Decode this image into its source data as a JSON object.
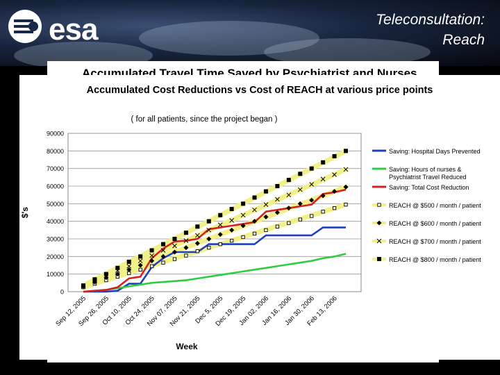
{
  "slide": {
    "title_line1": "Teleconsultation:",
    "title_line2": "Reach",
    "logo_text": "esa",
    "behind_title": "Accumulated Travel Time Saved by Psychiatrist and Nurses"
  },
  "colors": {
    "hospital": "#1f3fbf",
    "travel": "#2ecc40",
    "total": "#d62020",
    "reach_band": "#f2f08a"
  },
  "chart_data": {
    "type": "line",
    "title": "Accumulated Cost Reductions vs Cost of REACH at various price points",
    "subtitle": "( for all patients, since the project began )",
    "xlabel": "Week",
    "ylabel": "$'s",
    "ylim": [
      0,
      90000
    ],
    "yticks": [
      "0",
      "10000",
      "20000",
      "30000",
      "40000",
      "50000",
      "60000",
      "70000",
      "80000",
      "90000"
    ],
    "xticklabels": [
      "Sep 12, 2005",
      "Sep 26, 2005",
      "Oct 10, 2005",
      "Oct 24, 2005",
      "Nov 07, 2005",
      "Nov 21, 2005",
      "Dec 5, 2005",
      "Dec 19, 2005",
      "Jan 02, 2006",
      "Jan 16, 2006",
      "Jan 30, 2006",
      "Feb 13, 2006"
    ],
    "grid": "horizontal",
    "legend_position": "right",
    "x": [
      0,
      1,
      2,
      3,
      4,
      5,
      6,
      7,
      8,
      9,
      10,
      11,
      12,
      13,
      14,
      15,
      16,
      17,
      18,
      19,
      20,
      21,
      22,
      23
    ],
    "series": [
      {
        "name": "Saving:  Hospital Days Prevented",
        "style": "line",
        "color": "#1f3fbf",
        "values": [
          0,
          0,
          0,
          500,
          4500,
          4500,
          14000,
          19000,
          22500,
          22500,
          22500,
          27000,
          27000,
          27000,
          27000,
          27000,
          32000,
          32000,
          32000,
          32000,
          32000,
          36500,
          36500,
          36500
        ]
      },
      {
        "name": "Saving:  Hours of  nurses & Psychiatrist Travel Reduced",
        "style": "line",
        "color": "#2ecc40",
        "values": [
          0,
          500,
          1000,
          2000,
          3000,
          4000,
          5000,
          5500,
          6000,
          6500,
          7500,
          8500,
          9500,
          10500,
          11500,
          12500,
          13500,
          14500,
          15500,
          16500,
          17500,
          19000,
          20000,
          21500
        ]
      },
      {
        "name": "Saving:  Total Cost Reduction",
        "style": "line",
        "color": "#d62020",
        "values": [
          0,
          500,
          1000,
          2500,
          7500,
          8500,
          19000,
          24500,
          28500,
          29000,
          30000,
          35500,
          36500,
          37500,
          38500,
          39500,
          45500,
          46500,
          47500,
          48500,
          49500,
          55500,
          56500,
          58000
        ]
      },
      {
        "name": "REACH @ $500 / month / patient",
        "style": "marker",
        "marker": "square-open",
        "values": [
          2500,
          4500,
          6500,
          8500,
          10500,
          12500,
          14500,
          16500,
          18500,
          20500,
          23000,
          25000,
          27000,
          29000,
          31000,
          33000,
          35000,
          37000,
          39000,
          41000,
          43000,
          45500,
          47500,
          49500
        ]
      },
      {
        "name": "REACH @ $600 / month / patient",
        "style": "marker",
        "marker": "diamond",
        "values": [
          3000,
          5500,
          8000,
          10000,
          12500,
          15000,
          17500,
          20000,
          22500,
          25000,
          27500,
          30000,
          32500,
          35000,
          37500,
          40000,
          42500,
          45000,
          47500,
          50000,
          52000,
          54500,
          57000,
          59500
        ]
      },
      {
        "name": "REACH @ $700 / month / patient",
        "style": "marker",
        "marker": "x",
        "values": [
          3000,
          6000,
          9000,
          12000,
          14500,
          17500,
          20500,
          23500,
          26000,
          29000,
          32000,
          35000,
          38000,
          40500,
          43500,
          46500,
          49500,
          52500,
          55000,
          58000,
          61000,
          64000,
          66500,
          69500
        ]
      },
      {
        "name": "REACH @ $800 / month / patient",
        "style": "marker",
        "marker": "square",
        "values": [
          3500,
          7000,
          10000,
          13500,
          17000,
          20000,
          23500,
          27000,
          30000,
          33500,
          37000,
          40000,
          43500,
          47000,
          50000,
          53500,
          57000,
          60000,
          63500,
          67000,
          70000,
          73500,
          77000,
          80000
        ]
      }
    ]
  }
}
